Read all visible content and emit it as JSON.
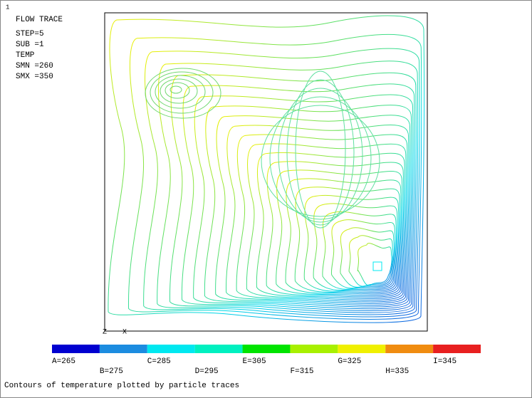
{
  "header": {
    "marker": "1",
    "title": "FLOW TRACE",
    "info": [
      "STEP=5",
      "SUB =1",
      "TEMP",
      "SMN =260",
      "SMX =350"
    ]
  },
  "triad": [
    "Z",
    "X"
  ],
  "legend": [
    {
      "label": "A=265",
      "color": "#0000d0"
    },
    {
      "label": "B=275",
      "color": "#1c8ce0"
    },
    {
      "label": "C=285",
      "color": "#00e8f0"
    },
    {
      "label": "D=295",
      "color": "#00f0c0"
    },
    {
      "label": "E=305",
      "color": "#00e400"
    },
    {
      "label": "F=315",
      "color": "#a8f000"
    },
    {
      "label": "G=325",
      "color": "#f0f000"
    },
    {
      "label": "H=335",
      "color": "#f08c10"
    },
    {
      "label": "I=345",
      "color": "#e82020"
    }
  ],
  "caption": "Contours of temperature plotted by particle traces"
}
